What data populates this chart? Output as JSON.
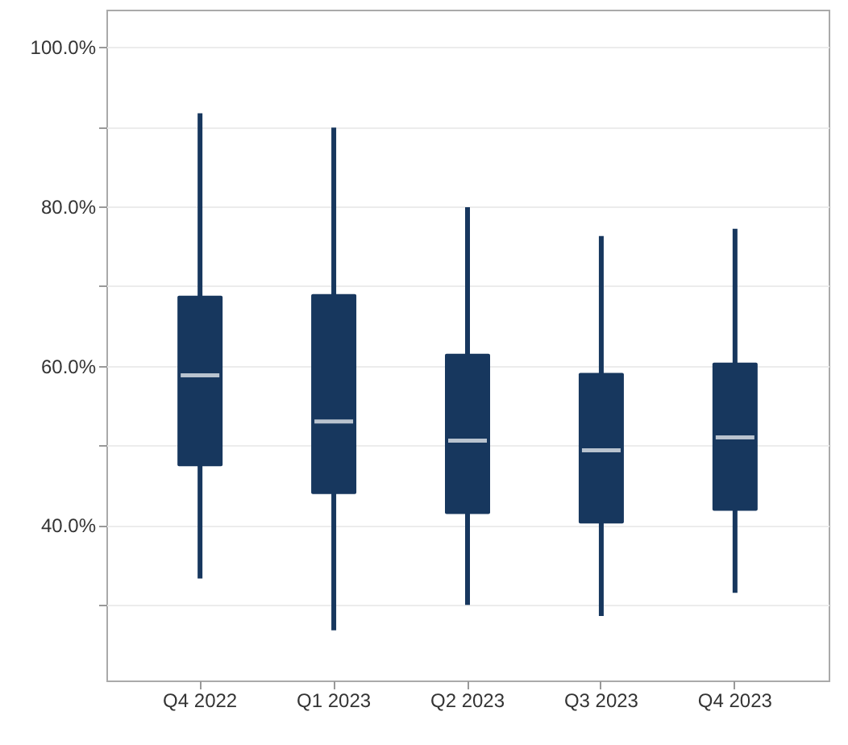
{
  "chart_data": {
    "type": "box",
    "categories": [
      "Q4 2022",
      "Q1 2023",
      "Q2 2023",
      "Q3 2023",
      "Q4 2023"
    ],
    "color": "#17375e",
    "boxes": [
      {
        "low": 33.3,
        "q1": 47.4,
        "median": 58.8,
        "q3": 68.8,
        "high": 91.7
      },
      {
        "low": 26.8,
        "q1": 43.9,
        "median": 53.0,
        "q3": 69.0,
        "high": 89.9
      },
      {
        "low": 30.0,
        "q1": 41.4,
        "median": 50.6,
        "q3": 61.5,
        "high": 79.9
      },
      {
        "low": 28.6,
        "q1": 40.2,
        "median": 49.4,
        "q3": 59.1,
        "high": 76.3
      },
      {
        "low": 31.5,
        "q1": 41.8,
        "median": 51.0,
        "q3": 60.4,
        "high": 77.2
      }
    ],
    "ylim": [
      20.5,
      104.7
    ],
    "yticks": [
      {
        "value": 30,
        "label": null
      },
      {
        "value": 40,
        "label": "40.0%"
      },
      {
        "value": 50,
        "label": null
      },
      {
        "value": 60,
        "label": "60.0%"
      },
      {
        "value": 70,
        "label": null
      },
      {
        "value": 80,
        "label": "80.0%"
      },
      {
        "value": 90,
        "label": null
      },
      {
        "value": 100,
        "label": "100.0%"
      }
    ],
    "grid": true
  }
}
